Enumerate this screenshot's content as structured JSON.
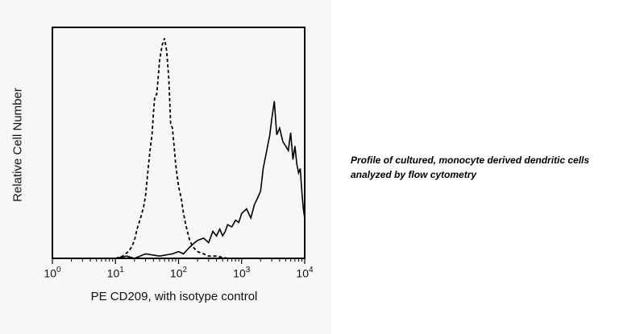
{
  "chart_data": {
    "type": "line",
    "title": "",
    "xlabel": "PE CD209, with isotype control",
    "ylabel": "Relative Cell Number",
    "x_scale": "log",
    "xlim": [
      1,
      10000
    ],
    "ylim": [
      0,
      100
    ],
    "x_ticks": [
      {
        "base": "10",
        "exp": "0",
        "value": 1
      },
      {
        "base": "10",
        "exp": "1",
        "value": 10
      },
      {
        "base": "10",
        "exp": "2",
        "value": 100
      },
      {
        "base": "10",
        "exp": "3",
        "value": 1000
      },
      {
        "base": "10",
        "exp": "4",
        "value": 10000
      }
    ],
    "grid": false,
    "series": [
      {
        "style": "dashed",
        "color": "#000000",
        "x": [
          10,
          13,
          16,
          18,
          20,
          22,
          25,
          28,
          30,
          33,
          35,
          38,
          40,
          42,
          45,
          48,
          50,
          55,
          60,
          65,
          70,
          75,
          80,
          85,
          90,
          100,
          110,
          120,
          130,
          150,
          170,
          200,
          250,
          300,
          400,
          600,
          1000,
          2000,
          4000,
          10000
        ],
        "y": [
          0,
          1,
          3,
          5,
          8,
          13,
          18,
          23,
          28,
          40,
          47,
          55,
          65,
          72,
          73,
          82,
          88,
          95,
          98,
          92,
          80,
          60,
          58,
          50,
          42,
          32,
          27,
          20,
          15,
          8,
          5,
          3,
          2,
          1,
          1,
          0,
          0,
          0,
          0,
          0
        ]
      },
      {
        "style": "solid",
        "color": "#000000",
        "x": [
          10,
          15,
          20,
          30,
          50,
          80,
          100,
          120,
          150,
          180,
          200,
          250,
          300,
          350,
          400,
          450,
          500,
          550,
          600,
          700,
          800,
          900,
          1000,
          1200,
          1400,
          1600,
          1800,
          2000,
          2200,
          2500,
          2800,
          3000,
          3300,
          3600,
          4000,
          4500,
          5000,
          5500,
          6000,
          6500,
          7000,
          7500,
          8000,
          8500,
          9000,
          9500,
          10000
        ],
        "y": [
          0,
          1,
          0,
          2,
          1,
          2,
          3,
          2,
          5,
          7,
          8,
          9,
          7,
          12,
          10,
          13,
          10,
          12,
          15,
          14,
          17,
          16,
          20,
          22,
          18,
          24,
          27,
          30,
          40,
          48,
          55,
          62,
          70,
          55,
          58,
          52,
          50,
          48,
          56,
          44,
          50,
          42,
          38,
          40,
          30,
          22,
          18
        ]
      }
    ]
  },
  "caption": {
    "line1": "Profile of cultured, monocyte derived dendritic cells",
    "line2": "analyzed by flow cytometry"
  }
}
